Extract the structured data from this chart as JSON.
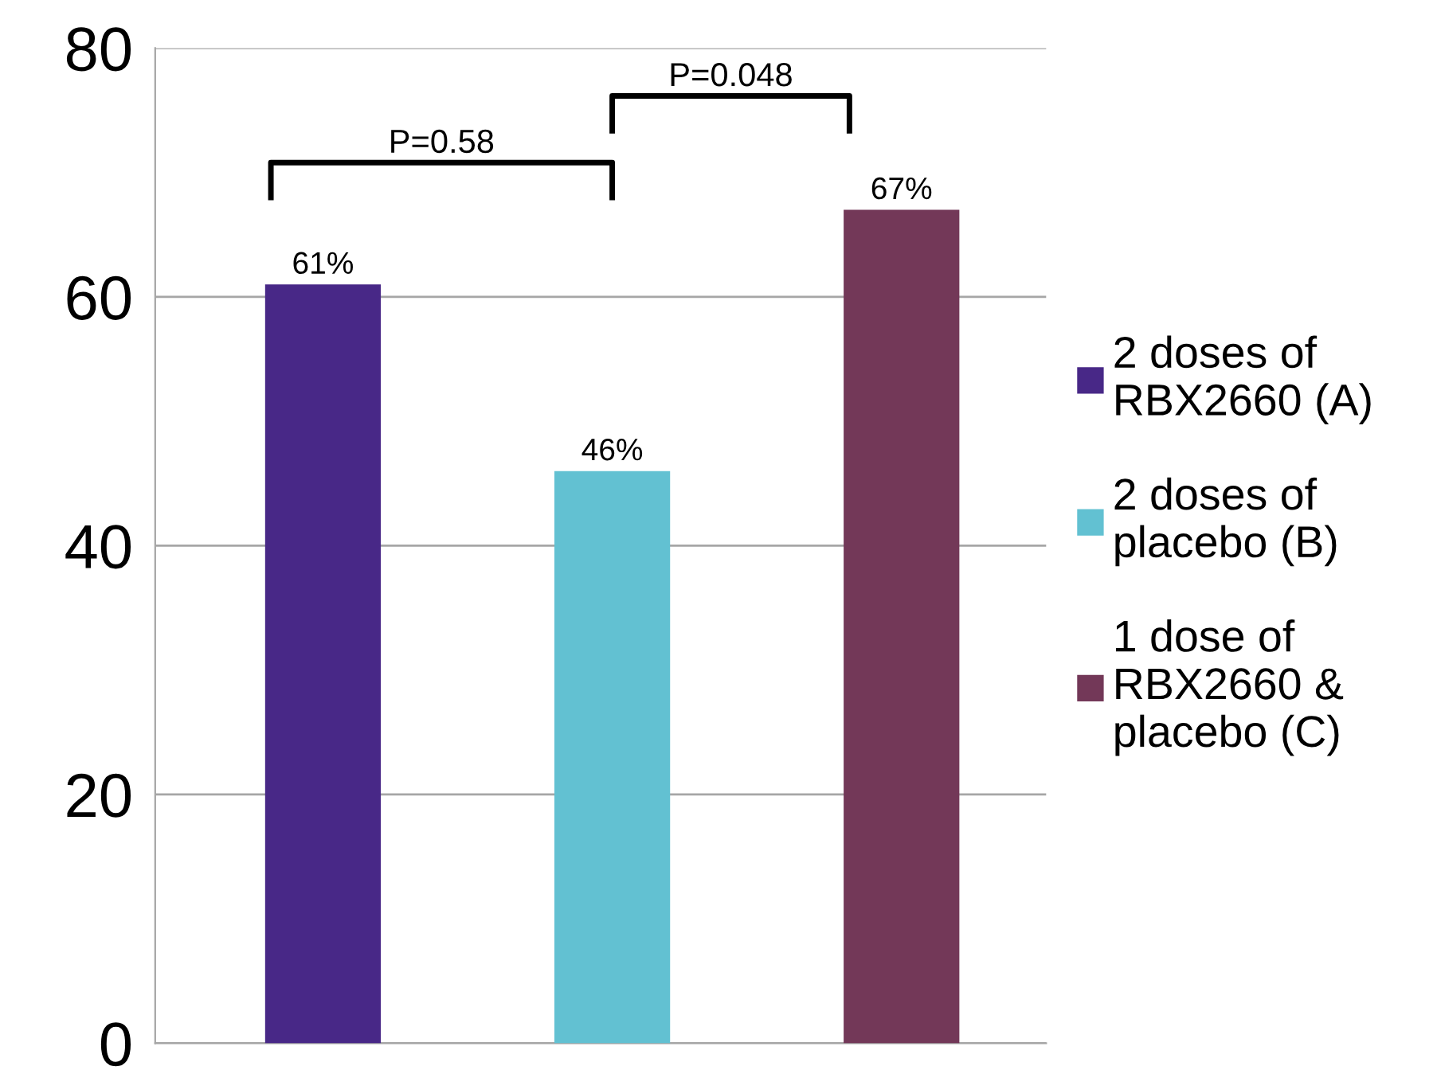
{
  "chart_data": {
    "type": "bar",
    "categories": [
      null,
      null,
      null
    ],
    "series": [
      {
        "name": "2 doses of\nRBX2660 (A)",
        "color": "#482887",
        "values": [
          61,
          null,
          null
        ],
        "value_labels": [
          "61%",
          null,
          null
        ]
      },
      {
        "name": "2 doses of\nplacebo (B)",
        "color": "#62c1d2",
        "values": [
          null,
          46,
          null
        ],
        "value_labels": [
          null,
          "46%",
          null
        ]
      },
      {
        "name": "1 dose of\nRBX2660 &\nplacebo (C)",
        "color": "#733858",
        "values": [
          null,
          null,
          67
        ],
        "value_labels": [
          null,
          null,
          "67%"
        ]
      }
    ],
    "ylim": [
      0,
      80
    ],
    "yticks": [
      0,
      20,
      40,
      60,
      80
    ],
    "grid": "y",
    "legend": "right",
    "annotations": [
      "P=0.58",
      "P=0.048"
    ]
  }
}
